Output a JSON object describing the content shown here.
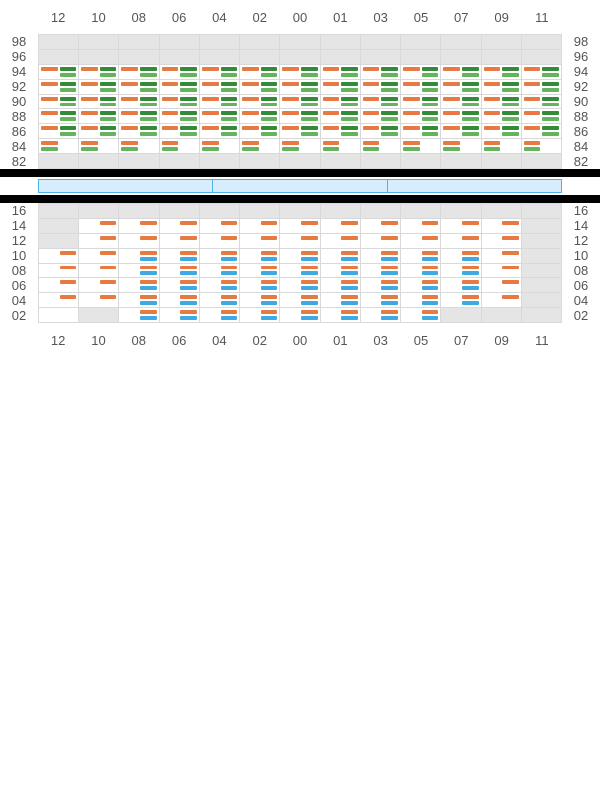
{
  "columns": [
    "12",
    "10",
    "08",
    "06",
    "04",
    "02",
    "00",
    "01",
    "03",
    "05",
    "07",
    "09",
    "11"
  ],
  "top_rows": [
    "98",
    "96",
    "94",
    "92",
    "90",
    "88",
    "86",
    "84",
    "82"
  ],
  "bottom_rows": [
    "16",
    "14",
    "12",
    "10",
    "08",
    "06",
    "04",
    "02"
  ],
  "colors": {
    "orange": "#e67a42",
    "green_dark": "#338b37",
    "green_light": "#64b45e",
    "blue": "#41a9e1",
    "empty_bg": "#e5e5e5",
    "grid_line": "#d9d9d9",
    "label_text": "#666666",
    "blue_seg_fill": "#d7edfb",
    "blue_seg_border": "#4fb1ea"
  },
  "label_fontsize": 13,
  "top_grid": [
    [
      "__",
      "__",
      "__",
      "__",
      "__",
      "__",
      "__",
      "__",
      "__",
      "__",
      "__",
      "__",
      "__"
    ],
    [
      "__",
      "__",
      "__",
      "__",
      "__",
      "__",
      "__",
      "__",
      "__",
      "__",
      "__",
      "__",
      "__"
    ],
    [
      "A1",
      "A1",
      "A1",
      "A1",
      "A1",
      "A1",
      "A1",
      "A1",
      "A1",
      "A1",
      "A1",
      "A1",
      "A1"
    ],
    [
      "A1",
      "A1",
      "A1",
      "A1",
      "A1",
      "A1",
      "A1",
      "A1",
      "A1",
      "A1",
      "A1",
      "A1",
      "A1"
    ],
    [
      "A1",
      "A1",
      "A1",
      "A1",
      "A1",
      "A1",
      "A1",
      "A1",
      "A1",
      "A1",
      "A1",
      "A1",
      "A1"
    ],
    [
      "A1",
      "A1",
      "A1",
      "A1",
      "A1",
      "A1",
      "A1",
      "A1",
      "A1",
      "A1",
      "A1",
      "A1",
      "A1"
    ],
    [
      "A1",
      "A1",
      "A1",
      "A1",
      "A1",
      "A1",
      "A1",
      "A1",
      "A1",
      "A1",
      "A1",
      "A1",
      "A1"
    ],
    [
      "A2",
      "A2",
      "A2",
      "A2",
      "A2",
      "A2",
      "A2",
      "A2",
      "A2",
      "A2",
      "A2",
      "A2",
      "A2"
    ],
    [
      "__",
      "__",
      "__",
      "__",
      "__",
      "__",
      "__",
      "__",
      "__",
      "__",
      "__",
      "__",
      "__"
    ]
  ],
  "bottom_grid": [
    [
      "__",
      "__",
      "__",
      "__",
      "__",
      "__",
      "__",
      "__",
      "__",
      "__",
      "__",
      "__",
      "__"
    ],
    [
      "__",
      "B1",
      "B1",
      "B1",
      "B1",
      "B1",
      "B1",
      "B1",
      "B1",
      "B1",
      "B1",
      "B1",
      "__"
    ],
    [
      "__",
      "B1",
      "B1",
      "B1",
      "B1",
      "B1",
      "B1",
      "B1",
      "B1",
      "B1",
      "B1",
      "B1",
      "__"
    ],
    [
      "B1",
      "B1",
      "B2",
      "B2",
      "B2",
      "B2",
      "B2",
      "B2",
      "B2",
      "B2",
      "B2",
      "B1",
      "__"
    ],
    [
      "B1",
      "B1",
      "B2",
      "B2",
      "B2",
      "B2",
      "B2",
      "B2",
      "B2",
      "B2",
      "B2",
      "B1",
      "__"
    ],
    [
      "B1",
      "B1",
      "B2",
      "B2",
      "B2",
      "B2",
      "B2",
      "B2",
      "B2",
      "B2",
      "B2",
      "B1",
      "__"
    ],
    [
      "B1",
      "B1",
      "B2",
      "B2",
      "B2",
      "B2",
      "B2",
      "B2",
      "B2",
      "B2",
      "B2",
      "B1",
      "__"
    ],
    [
      "E0",
      "__",
      "B2",
      "B2",
      "B2",
      "B2",
      "B2",
      "B2",
      "B2",
      "B2",
      "__",
      "__",
      "__"
    ]
  ],
  "cell_types": {
    "__": {
      "empty": true
    },
    "E0": {
      "empty": false,
      "tl": null,
      "tr": null,
      "bl": null,
      "br": null
    },
    "A1": {
      "tl": "orange",
      "tr": "green_dark",
      "bl": null,
      "br": "green_light"
    },
    "A2": {
      "tl": "orange",
      "tr": null,
      "bl": "green_light",
      "br": null
    },
    "B1": {
      "tl": null,
      "tr": "orange",
      "bl": null,
      "br": null
    },
    "B2": {
      "tl": null,
      "tr": "orange",
      "bl": null,
      "br": "blue"
    }
  },
  "divider_segments": 3
}
